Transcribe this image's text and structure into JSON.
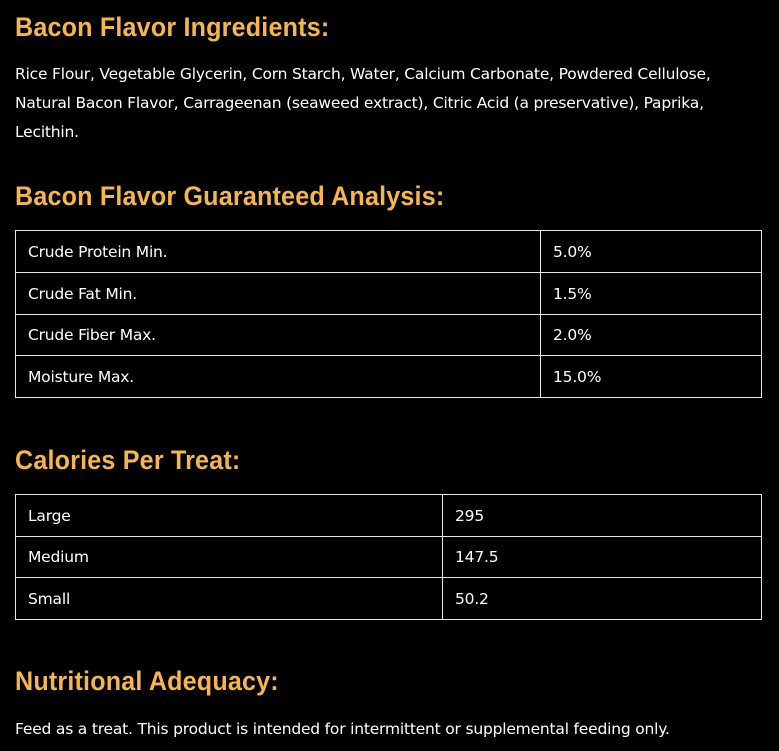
{
  "sections": {
    "ingredients": {
      "heading": "Bacon Flavor Ingredients:",
      "text": "Rice Flour, Vegetable Glycerin, Corn Starch, Water, Calcium Carbonate, Powdered Cellulose, Natural Bacon Flavor, Carrageenan (seaweed extract), Citric Acid (a preservative), Paprika, Lecithin."
    },
    "analysis": {
      "heading": "Bacon Flavor Guaranteed Analysis:",
      "rows": [
        {
          "label": "Crude Protein Min.",
          "value": "5.0%"
        },
        {
          "label": "Crude Fat Min.",
          "value": "1.5%"
        },
        {
          "label": "Crude Fiber Max.",
          "value": "2.0%"
        },
        {
          "label": "Moisture Max.",
          "value": "15.0%"
        }
      ]
    },
    "calories": {
      "heading": "Calories Per Treat:",
      "rows": [
        {
          "label": "Large",
          "value": "295"
        },
        {
          "label": "Medium",
          "value": "147.5"
        },
        {
          "label": "Small",
          "value": "50.2"
        }
      ]
    },
    "adequacy": {
      "heading": "Nutritional Adequacy:",
      "text": "Feed as a treat. This product is intended for intermittent or supplemental feeding only."
    }
  },
  "colors": {
    "background": "#000000",
    "heading": "#f6b64a",
    "text": "#ffffff",
    "border": "#e6e6e6"
  }
}
